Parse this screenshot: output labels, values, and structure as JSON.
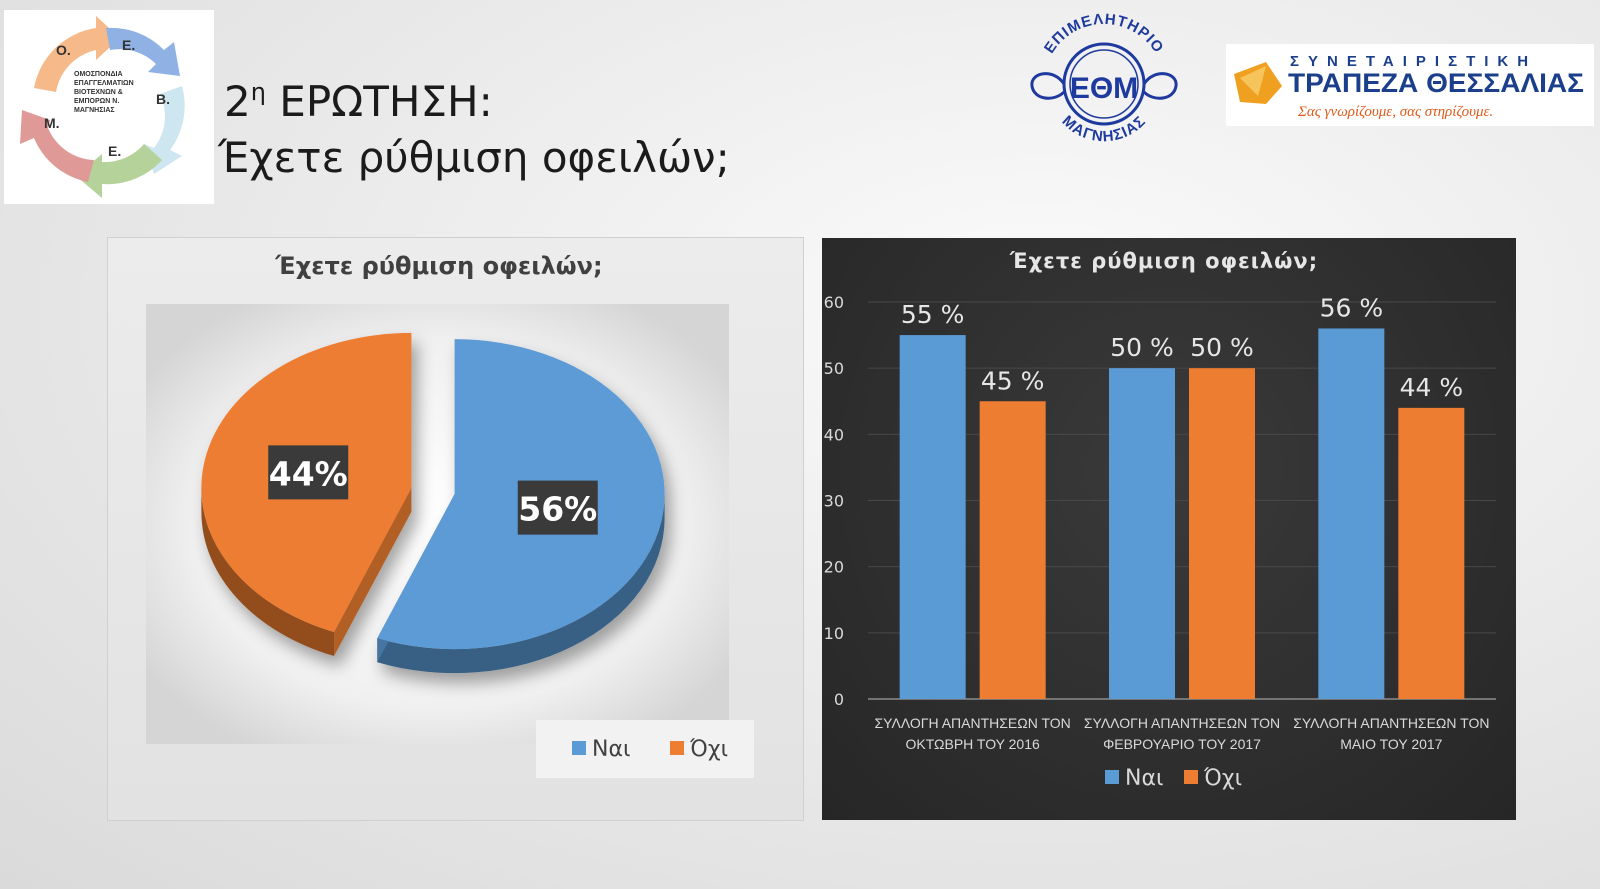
{
  "slide": {
    "title_prefix": "2",
    "title_sup": "η",
    "title_main": " ΕΡΩΤΗΣΗ:",
    "subtitle": "Έχετε ρύθμιση οφειλών;"
  },
  "logos": {
    "omep": {
      "letters": [
        "Ο.",
        "Ε.",
        "Β.",
        "Ε.",
        "Μ."
      ],
      "text_lines": [
        "ΟΜΟΣΠΟΝΔΙΑ",
        "ΕΠΑΓΓΕΛΜΑΤΙΩΝ",
        "ΒΙΟΤΕΧΝΩΝ &",
        "ΕΜΠΟΡΩΝ Ν.",
        "ΜΑΓΝΗΣΙΑΣ"
      ],
      "arrow_colors": [
        "#f6b98a",
        "#8fb1e3",
        "#cde6ef",
        "#b5d29b",
        "#df9a98"
      ]
    },
    "eom": {
      "top_text": "ΕΠΙΜΕΛΗΤΗΡΙΟ",
      "center_text": "ΕΘΜ",
      "bottom_text": "ΜΑΓΝΗΣΙΑΣ",
      "color": "#1e3a9e"
    },
    "bank": {
      "line1": "ΣΥΝΕΤΑΙΡΙΣΤΙΚΗ",
      "line2": "ΤΡΑΠΕΖΑ ΘΕΣΣΑΛΙΑΣ",
      "slogan": "Σας γνωρίζουμε, σας στηρίζουμε.",
      "color_text": "#1c3f8c",
      "color_accent": "#f0a020",
      "color_slogan": "#e05a1c"
    }
  },
  "chart_data": [
    {
      "type": "pie",
      "title": "Έχετε ρύθμιση οφειλών;",
      "slices": [
        {
          "name": "Ναι",
          "value": 56,
          "label": "56%",
          "color": "#5b9bd5"
        },
        {
          "name": "Όχι",
          "value": 44,
          "label": "44%",
          "color": "#ed7d31"
        }
      ],
      "legend": [
        "Ναι",
        "Όχι"
      ],
      "legend_position": "bottom-right",
      "style": "3d-exploded"
    },
    {
      "type": "bar",
      "title": "Έχετε ρύθμιση οφειλών;",
      "categories": [
        [
          "ΣΥΛΛΟΓΗ ΑΠΑΝΤΗΣΕΩΝ ΤΟΝ",
          "ΟΚΤΩΒΡΗ ΤΟΥ 2016"
        ],
        [
          "ΣΥΛΛΟΓΗ ΑΠΑΝΤΗΣΕΩΝ ΤΟΝ",
          "ΦΕΒΡΟΥΑΡΙΟ ΤΟΥ 2017"
        ],
        [
          "ΣΥΛΛΟΓΗ ΑΠΑΝΤΗΣΕΩΝ ΤΟΝ",
          "ΜΑΙΟ ΤΟΥ 2017"
        ]
      ],
      "series": [
        {
          "name": "Ναι",
          "values": [
            55,
            50,
            56
          ],
          "labels": [
            "55 %",
            "50 %",
            "56 %"
          ],
          "color": "#5b9bd5"
        },
        {
          "name": "Όχι",
          "values": [
            45,
            50,
            44
          ],
          "labels": [
            "45 %",
            "50 %",
            "44 %"
          ],
          "color": "#ed7d31"
        }
      ],
      "ylim": [
        0,
        60
      ],
      "yticks": [
        "0",
        "10",
        "20",
        "30",
        "40",
        "50",
        "60"
      ],
      "grid": true,
      "legend_position": "bottom"
    }
  ]
}
